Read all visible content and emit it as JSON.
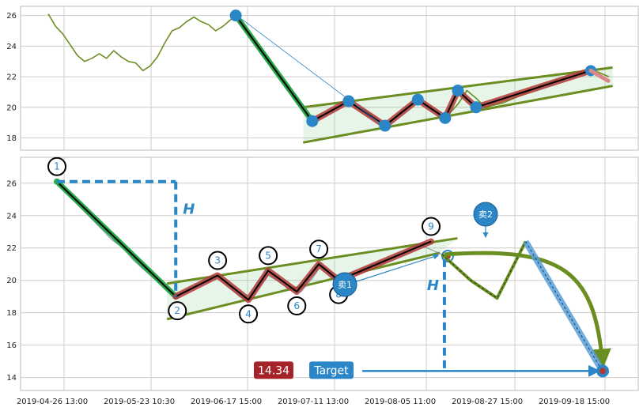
{
  "chart_data": [
    {
      "type": "line",
      "title": "",
      "ylim": [
        17.2,
        26.6
      ],
      "yticks": [
        18,
        20,
        22,
        24,
        26
      ],
      "grid": true,
      "series": [
        {
          "values": [
            [
              0.0,
              26.1
            ],
            [
              0.4,
              25.3
            ],
            [
              0.8,
              24.8
            ],
            [
              1.2,
              24.1
            ],
            [
              1.6,
              23.4
            ],
            [
              2.0,
              23.0
            ],
            [
              2.4,
              23.2
            ],
            [
              2.8,
              23.5
            ],
            [
              3.2,
              23.2
            ],
            [
              3.6,
              23.7
            ],
            [
              4.0,
              23.3
            ],
            [
              4.4,
              23.0
            ],
            [
              4.8,
              22.9
            ],
            [
              5.2,
              22.4
            ],
            [
              5.6,
              22.7
            ],
            [
              6.0,
              23.3
            ],
            [
              6.4,
              24.2
            ],
            [
              6.8,
              25.0
            ],
            [
              7.2,
              25.2
            ],
            [
              7.6,
              25.6
            ],
            [
              8.0,
              25.9
            ],
            [
              8.4,
              25.6
            ],
            [
              8.8,
              25.4
            ],
            [
              9.2,
              25.0
            ],
            [
              9.6,
              25.3
            ],
            [
              10.0,
              25.7
            ],
            [
              10.3,
              26.0
            ]
          ]
        },
        {
          "values": [
            [
              10.3,
              26.0
            ],
            [
              12.0,
              23.2
            ],
            [
              13.5,
              20.8
            ],
            [
              14.0,
              19.8
            ],
            [
              14.5,
              19.1
            ],
            [
              15.5,
              19.7
            ],
            [
              16.5,
              20.4
            ],
            [
              17.5,
              19.7
            ],
            [
              18.5,
              18.8
            ],
            [
              19.5,
              19.8
            ],
            [
              20.3,
              20.5
            ],
            [
              21.0,
              20.0
            ],
            [
              21.8,
              19.3
            ],
            [
              22.5,
              20.2
            ],
            [
              23.0,
              21.1
            ],
            [
              23.5,
              20.6
            ],
            [
              24.0,
              20.0
            ],
            [
              25.0,
              20.3
            ],
            [
              26.0,
              20.8
            ],
            [
              27.0,
              21.4
            ],
            [
              28.0,
              21.8
            ],
            [
              29.0,
              22.1
            ],
            [
              30.0,
              22.4
            ],
            [
              30.8,
              22.0
            ]
          ]
        }
      ],
      "pattern_points": [
        [
          10.3,
          26.0
        ],
        [
          14.5,
          19.1
        ],
        [
          16.5,
          20.4
        ],
        [
          18.5,
          18.8
        ],
        [
          20.3,
          20.5
        ],
        [
          21.8,
          19.3
        ],
        [
          22.5,
          21.1
        ],
        [
          23.5,
          20.0
        ],
        [
          29.8,
          22.4
        ]
      ],
      "trendlines": {
        "upper": [
          [
            14.0,
            20.0
          ],
          [
            31.0,
            22.6
          ]
        ],
        "lower": [
          [
            14.0,
            17.7
          ],
          [
            31.0,
            21.4
          ]
        ]
      }
    },
    {
      "type": "line",
      "ylim": [
        13.2,
        27.6
      ],
      "yticks": [
        14,
        16,
        18,
        20,
        22,
        24,
        26
      ],
      "xticks": [
        "2019-04-26 13:00",
        "2019-05-23 10:30",
        "2019-06-17 15:00",
        "2019-07-11 13:00",
        "2019-08-05 11:00",
        "2019-08-27 15:00",
        "2019-09-18 15:00"
      ],
      "grid": true,
      "series": [
        {
          "values": [
            [
              0.0,
              26.1
            ],
            [
              0.5,
              25.3
            ],
            [
              1.0,
              24.6
            ],
            [
              1.5,
              23.9
            ],
            [
              2.0,
              23.2
            ],
            [
              2.5,
              22.5
            ],
            [
              3.0,
              22.0
            ],
            [
              3.5,
              21.2
            ],
            [
              4.0,
              20.6
            ],
            [
              4.5,
              20.0
            ],
            [
              5.0,
              19.4
            ],
            [
              5.4,
              19.0
            ],
            [
              5.8,
              19.3
            ],
            [
              6.3,
              19.6
            ],
            [
              6.8,
              19.9
            ],
            [
              7.3,
              20.3
            ],
            [
              7.8,
              19.7
            ],
            [
              8.3,
              19.0
            ],
            [
              8.7,
              18.8
            ],
            [
              9.2,
              19.6
            ],
            [
              9.6,
              20.3
            ],
            [
              10.1,
              19.9
            ],
            [
              10.6,
              19.4
            ],
            [
              11.1,
              19.3
            ],
            [
              11.6,
              20.1
            ],
            [
              12.0,
              20.9
            ],
            [
              12.5,
              20.5
            ],
            [
              13.0,
              20.1
            ],
            [
              13.5,
              20.4
            ],
            [
              14.0,
              20.8
            ],
            [
              14.5,
              21.1
            ],
            [
              15.0,
              21.3
            ],
            [
              15.5,
              21.6
            ],
            [
              16.0,
              21.9
            ],
            [
              16.5,
              22.2
            ],
            [
              17.0,
              21.9
            ],
            [
              17.5,
              21.6
            ]
          ]
        }
      ],
      "pattern_points": [
        [
          0.0,
          26.1
        ],
        [
          5.4,
          19.0
        ],
        [
          7.3,
          20.3
        ],
        [
          8.7,
          18.8
        ],
        [
          9.6,
          20.6
        ],
        [
          10.9,
          19.3
        ],
        [
          11.9,
          21.0
        ],
        [
          12.8,
          20.0
        ],
        [
          17.0,
          22.4
        ]
      ],
      "pattern_labels": [
        "1",
        "2",
        "3",
        "4",
        "5",
        "6",
        "7",
        "8",
        "9"
      ],
      "trendlines": {
        "upper": [
          [
            5.0,
            19.8
          ],
          [
            18.2,
            22.6
          ]
        ],
        "lower": [
          [
            5.0,
            17.6
          ],
          [
            17.4,
            21.7
          ]
        ]
      },
      "projection": [
        [
          17.5,
          21.6
        ],
        [
          18.8,
          20.0
        ],
        [
          20.0,
          18.9
        ],
        [
          21.3,
          22.4
        ],
        [
          24.8,
          14.4
        ]
      ],
      "height_label": "H",
      "sell_labels": [
        "卖1",
        "卖2"
      ],
      "target_value": "14.34",
      "target_label": "Target"
    }
  ]
}
